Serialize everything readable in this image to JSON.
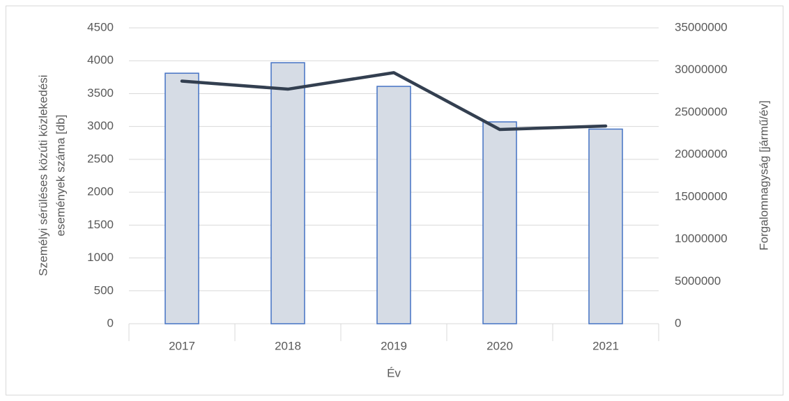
{
  "chart_data": {
    "type": "bar_line",
    "xlabel": "Év",
    "ylabel": [
      "Személyi sérüléses közúti közlekedési",
      "események száma [db]"
    ],
    "y2label": "Forgalomnagyság [jármű/év]",
    "categories": [
      "2017",
      "2018",
      "2019",
      "2020",
      "2021"
    ],
    "series": [
      {
        "name": "Személyi sérüléses közúti közlekedési események száma",
        "type": "bar",
        "color": "#d6dce5",
        "edge_color": "#4472c4",
        "values": [
          3810,
          3970,
          3610,
          3070,
          2960
        ]
      },
      {
        "name": "Forgalomnagyság",
        "type": "line",
        "axis": "y2",
        "color": "#333f50",
        "values": [
          28700000,
          27750000,
          29700000,
          22980000,
          23390000
        ]
      }
    ],
    "ylim": [
      0,
      4500
    ],
    "yticks": [
      0,
      500,
      1000,
      1500,
      2000,
      2500,
      3000,
      3500,
      4000,
      4500
    ],
    "y2lim": [
      0,
      35000000
    ],
    "y2ticks": [
      0,
      5000000,
      10000000,
      15000000,
      20000000,
      25000000,
      30000000,
      35000000
    ],
    "grid": true
  }
}
